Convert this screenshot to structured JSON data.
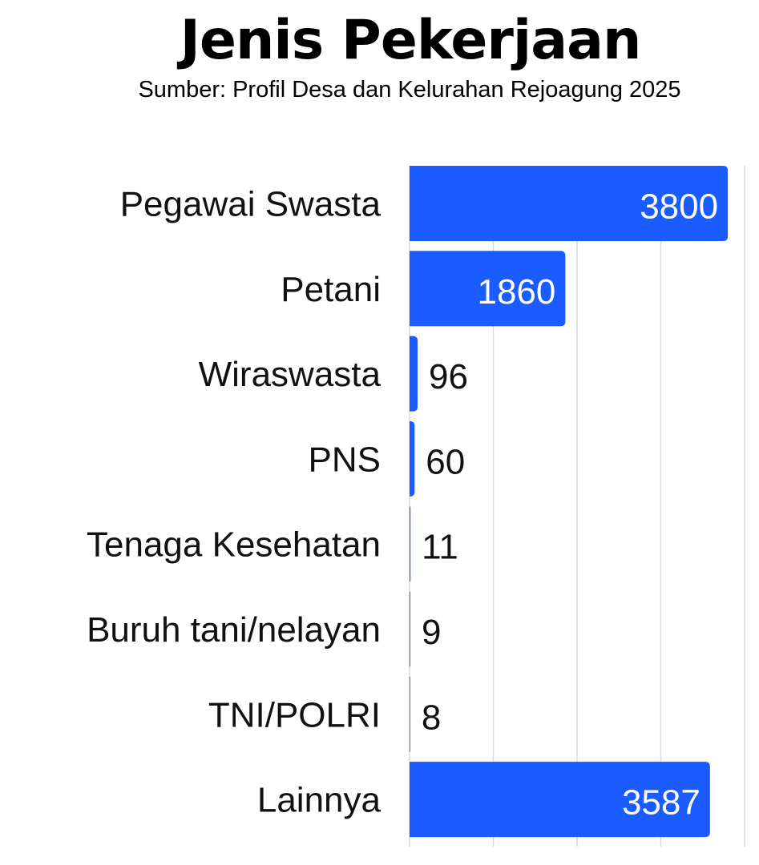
{
  "title": "Jenis Pekerjaan",
  "subtitle": "Sumber: Profil Desa dan Kelurahan Rejoagung 2025",
  "colors": {
    "bar": "#1a5cff",
    "grid": "#d9d9d9",
    "label_inside": "#ffffff",
    "label_outside": "#111111"
  },
  "chart_data": {
    "type": "bar",
    "orientation": "horizontal",
    "categories": [
      "Pegawai Swasta",
      "Petani",
      "Wiraswasta",
      "PNS",
      "Tenaga Kesehatan",
      "Buruh tani/nelayan",
      "TNI/POLRI",
      "Lainnya"
    ],
    "values": [
      3800,
      1860,
      96,
      60,
      11,
      9,
      8,
      3587
    ],
    "data_labels": [
      "3800",
      "1860",
      "96",
      "60",
      "11",
      "9",
      "8",
      "3587"
    ],
    "xlim": [
      0,
      4000
    ],
    "gridlines_x": [
      0,
      1000,
      2000,
      3000,
      4000
    ],
    "grid": true,
    "legend": "none"
  }
}
